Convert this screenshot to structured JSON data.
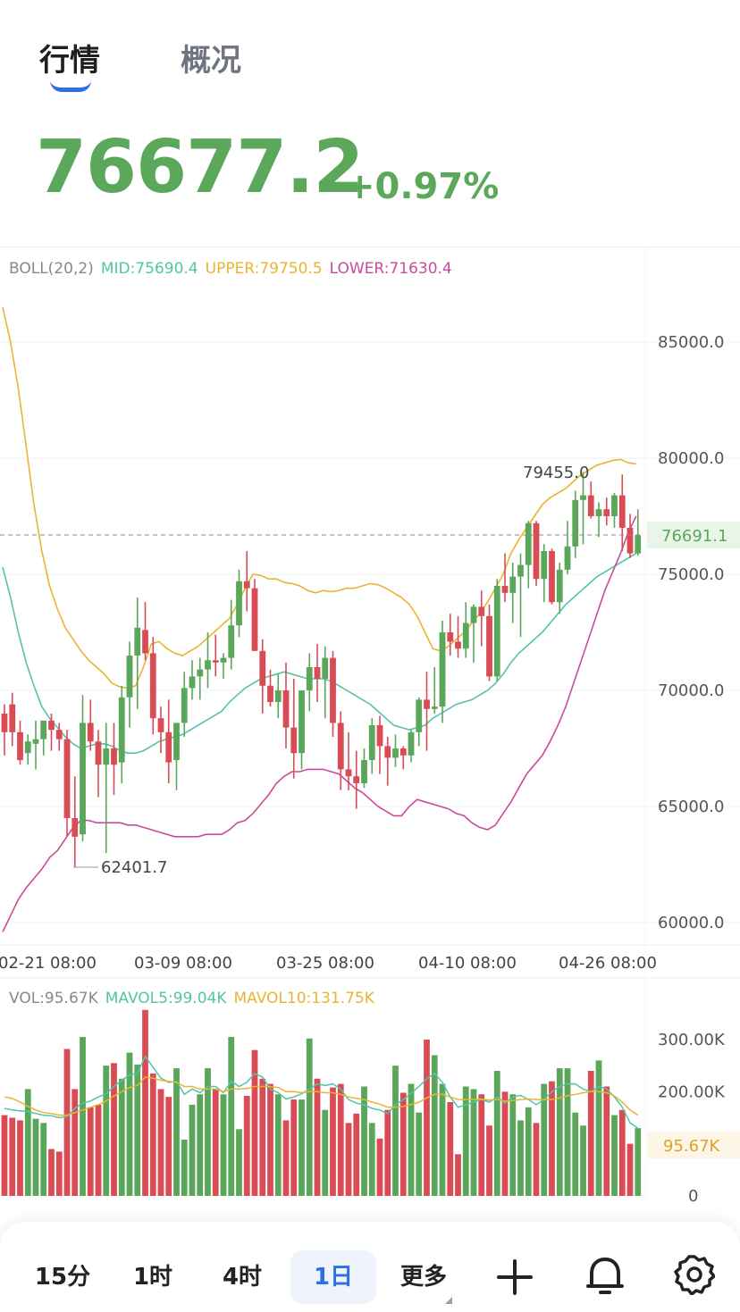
{
  "tabs": {
    "market": "行情",
    "overview": "概况"
  },
  "price": {
    "last": "76677.2",
    "change_pct": "+0.97%"
  },
  "chart_data": {
    "type": "candlestick",
    "boll": {
      "label": "BOLL(20,2)",
      "mid": "MID:75690.4",
      "upper": "UPPER:79750.5",
      "lower": "LOWER:71630.4"
    },
    "y_ticks": [
      "85000.0",
      "80000.0",
      "75000.0",
      "70000.0",
      "65000.0",
      "60000.0"
    ],
    "x_ticks": [
      "02-21 08:00",
      "03-09 08:00",
      "03-25 08:00",
      "04-10 08:00",
      "04-26 08:00"
    ],
    "y_range": [
      59000,
      88000
    ],
    "current_price": "76691.1",
    "high_label": "79455.0",
    "low_label": "62401.7",
    "candles": [
      [
        69000,
        69400,
        67200,
        68200
      ],
      [
        69400,
        69900,
        67600,
        68200
      ],
      [
        68200,
        68700,
        66800,
        67000
      ],
      [
        67300,
        68100,
        66800,
        67800
      ],
      [
        67700,
        68700,
        66600,
        67900
      ],
      [
        67900,
        68600,
        67200,
        68700
      ],
      [
        68700,
        69000,
        67400,
        68300
      ],
      [
        68300,
        68600,
        67400,
        67900
      ],
      [
        67900,
        68300,
        63700,
        64500
      ],
      [
        64500,
        66300,
        62400,
        63700
      ],
      [
        63800,
        69800,
        63500,
        68600
      ],
      [
        68600,
        69600,
        67400,
        67800
      ],
      [
        67800,
        68300,
        65400,
        66800
      ],
      [
        66800,
        68600,
        63000,
        67500
      ],
      [
        67500,
        68600,
        65500,
        66800
      ],
      [
        66900,
        70200,
        66000,
        69700
      ],
      [
        69700,
        72100,
        68400,
        71500
      ],
      [
        71500,
        74000,
        69200,
        72700
      ],
      [
        72600,
        73800,
        71300,
        71600
      ],
      [
        71600,
        72300,
        68100,
        68800
      ],
      [
        68800,
        69300,
        67300,
        68200
      ],
      [
        68200,
        69600,
        66000,
        66900
      ],
      [
        67000,
        68600,
        65700,
        68600
      ],
      [
        68600,
        70800,
        68000,
        70100
      ],
      [
        70100,
        71300,
        69600,
        70600
      ],
      [
        70600,
        71400,
        69600,
        70900
      ],
      [
        70900,
        72500,
        70100,
        71300
      ],
      [
        71300,
        72400,
        70600,
        71200
      ],
      [
        71200,
        71600,
        70500,
        71400
      ],
      [
        71400,
        73900,
        70900,
        72800
      ],
      [
        72800,
        75200,
        72300,
        74700
      ],
      [
        74700,
        76000,
        73400,
        74400
      ],
      [
        74400,
        74800,
        71700,
        71700
      ],
      [
        71700,
        72200,
        69000,
        70200
      ],
      [
        70200,
        70900,
        69300,
        69500
      ],
      [
        69500,
        70700,
        68800,
        70000
      ],
      [
        70000,
        71200,
        67500,
        68400
      ],
      [
        68400,
        70500,
        66200,
        67300
      ],
      [
        67300,
        70000,
        66600,
        70000
      ],
      [
        70000,
        71600,
        69100,
        71000
      ],
      [
        71000,
        72000,
        69500,
        70500
      ],
      [
        70500,
        71900,
        68800,
        71400
      ],
      [
        71400,
        71700,
        68000,
        68600
      ],
      [
        68600,
        69100,
        65700,
        66600
      ],
      [
        66600,
        68200,
        65700,
        66300
      ],
      [
        66300,
        67400,
        64900,
        66000
      ],
      [
        66000,
        67500,
        65800,
        67000
      ],
      [
        67000,
        68800,
        66400,
        68500
      ],
      [
        68500,
        68900,
        66400,
        67600
      ],
      [
        67600,
        68000,
        65900,
        67100
      ],
      [
        67100,
        68100,
        66700,
        67500
      ],
      [
        67500,
        67600,
        66600,
        67200
      ],
      [
        67200,
        68300,
        66900,
        68200
      ],
      [
        68200,
        69700,
        67600,
        69600
      ],
      [
        69600,
        70800,
        67400,
        69200
      ],
      [
        69200,
        71000,
        69000,
        69300
      ],
      [
        69300,
        73000,
        68600,
        72500
      ],
      [
        72500,
        73300,
        71500,
        72100
      ],
      [
        72100,
        73200,
        71400,
        71800
      ],
      [
        71800,
        73800,
        71400,
        72900
      ],
      [
        72900,
        73700,
        71200,
        73600
      ],
      [
        73600,
        74300,
        71900,
        73200
      ],
      [
        73200,
        73700,
        70400,
        70600
      ],
      [
        70600,
        74800,
        70400,
        74500
      ],
      [
        74500,
        75900,
        73800,
        74200
      ],
      [
        74200,
        75500,
        72900,
        74900
      ],
      [
        74900,
        75900,
        72300,
        75400
      ],
      [
        75400,
        77300,
        74400,
        77200
      ],
      [
        77200,
        77300,
        74500,
        74800
      ],
      [
        74800,
        76300,
        73800,
        76000
      ],
      [
        76000,
        76100,
        73700,
        73800
      ],
      [
        73800,
        75500,
        73300,
        75200
      ],
      [
        75200,
        77300,
        75000,
        76200
      ],
      [
        76200,
        78600,
        75700,
        78200
      ],
      [
        78200,
        79400,
        76300,
        78400
      ],
      [
        78400,
        79000,
        77400,
        77500
      ],
      [
        77500,
        78100,
        76600,
        77800
      ],
      [
        77800,
        78300,
        77100,
        77500
      ],
      [
        77500,
        78500,
        77000,
        78400
      ],
      [
        78400,
        79300,
        76000,
        77000
      ],
      [
        77000,
        77600,
        75700,
        75900
      ],
      [
        75900,
        77800,
        75800,
        76677
      ]
    ],
    "boll_upper_line": [
      86500,
      85000,
      83000,
      80500,
      78000,
      76000,
      74500,
      73500,
      72700,
      72200,
      71700,
      71300,
      71000,
      70700,
      70300,
      70150,
      70100,
      70200,
      71000,
      72000,
      72100,
      71800,
      71600,
      71500,
      71700,
      71900,
      72200,
      72500,
      72800,
      73100,
      73700,
      74400,
      75000,
      74950,
      74800,
      74800,
      74650,
      74600,
      74500,
      74300,
      74200,
      74300,
      74250,
      74300,
      74400,
      74400,
      74500,
      74600,
      74550,
      74400,
      74200,
      74000,
      73700,
      73200,
      72500,
      71800,
      71700,
      71900,
      72200,
      72500,
      72900,
      73300,
      73800,
      74400,
      75000,
      75900,
      76500,
      77000,
      77500,
      78000,
      78300,
      78500,
      78700,
      79000,
      79300,
      79500,
      79700,
      79800,
      79900,
      79950,
      79800,
      79750
    ],
    "boll_mid_line": [
      75300,
      74000,
      72500,
      71200,
      70200,
      69300,
      68800,
      68400,
      68000,
      67700,
      67500,
      67600,
      67700,
      67700,
      67600,
      67400,
      67300,
      67300,
      67400,
      67600,
      67800,
      67900,
      68000,
      68100,
      68300,
      68500,
      68700,
      68900,
      69100,
      69500,
      69800,
      70100,
      70300,
      70500,
      70600,
      70700,
      70800,
      70700,
      70600,
      70500,
      70500,
      70500,
      70400,
      70200,
      70000,
      69800,
      69600,
      69400,
      69100,
      68800,
      68500,
      68400,
      68300,
      68400,
      68500,
      68800,
      69000,
      69200,
      69400,
      69500,
      69600,
      69800,
      70000,
      70300,
      70700,
      71200,
      71600,
      71900,
      72200,
      72500,
      72900,
      73300,
      73700,
      74000,
      74300,
      74600,
      74900,
      75100,
      75300,
      75500,
      75700,
      75900
    ],
    "boll_lower_line": [
      59600,
      60300,
      61000,
      61500,
      61900,
      62300,
      62800,
      63100,
      63600,
      64100,
      64400,
      64400,
      64300,
      64300,
      64300,
      64300,
      64200,
      64200,
      64100,
      64000,
      63900,
      63800,
      63700,
      63700,
      63700,
      63700,
      63800,
      63800,
      63800,
      64000,
      64300,
      64400,
      64700,
      65100,
      65500,
      66000,
      66300,
      66500,
      66500,
      66600,
      66600,
      66600,
      66500,
      66400,
      66100,
      65800,
      65600,
      65300,
      65000,
      64800,
      64600,
      64600,
      65000,
      65300,
      65200,
      65100,
      65000,
      64900,
      64700,
      64600,
      64300,
      64100,
      64000,
      64200,
      64700,
      65200,
      65800,
      66400,
      66800,
      67200,
      67800,
      68500,
      69300,
      70300,
      71300,
      72300,
      73300,
      74300,
      75100,
      75900,
      76800,
      77500
    ],
    "vol": {
      "label": "VOL:95.67K",
      "mavol5": "MAVOL5:99.04K",
      "mavol10": "MAVOL10:131.75K"
    },
    "vol_ticks": [
      "300.00K",
      "200.00K",
      "0"
    ],
    "vol_current": "95.67K",
    "volumes": [
      155,
      150,
      145,
      205,
      148,
      140,
      90,
      85,
      282,
      205,
      305,
      170,
      175,
      250,
      255,
      225,
      275,
      252,
      357,
      235,
      205,
      190,
      245,
      108,
      175,
      195,
      245,
      205,
      195,
      305,
      128,
      192,
      280,
      225,
      215,
      195,
      145,
      185,
      185,
      302,
      225,
      165,
      208,
      215,
      140,
      158,
      210,
      140,
      110,
      165,
      250,
      198,
      215,
      160,
      300,
      270,
      215,
      180,
      80,
      210,
      205,
      195,
      135,
      240,
      200,
      195,
      145,
      170,
      140,
      215,
      220,
      245,
      245,
      160,
      135,
      240,
      260,
      210,
      155,
      165,
      100,
      130
    ],
    "mavol5_line": [
      168,
      165,
      163,
      162,
      158,
      155,
      154,
      150,
      152,
      168,
      178,
      182,
      190,
      196,
      210,
      222,
      232,
      235,
      268,
      247,
      226,
      218,
      220,
      195,
      205,
      198,
      210,
      210,
      198,
      220,
      210,
      218,
      235,
      228,
      205,
      198,
      186,
      190,
      196,
      205,
      215,
      212,
      215,
      205,
      185,
      178,
      175,
      168,
      165,
      158,
      175,
      185,
      197,
      210,
      225,
      235,
      218,
      190,
      170,
      175,
      180,
      185,
      180,
      190,
      178,
      190,
      193,
      185,
      175,
      185,
      200,
      210,
      215,
      215,
      205,
      200,
      210,
      205,
      190,
      170,
      140,
      130
    ],
    "mavol10_line": [
      190,
      187,
      180,
      172,
      165,
      160,
      158,
      155,
      155,
      160,
      165,
      170,
      175,
      182,
      192,
      200,
      208,
      212,
      228,
      226,
      222,
      220,
      218,
      210,
      210,
      205,
      205,
      205,
      200,
      205,
      205,
      206,
      210,
      210,
      210,
      208,
      200,
      200,
      198,
      200,
      200,
      198,
      198,
      195,
      190,
      187,
      185,
      180,
      176,
      170,
      170,
      172,
      175,
      180,
      188,
      195,
      195,
      190,
      185,
      185,
      185,
      186,
      184,
      185,
      182,
      183,
      185,
      186,
      185,
      185,
      185,
      188,
      192,
      195,
      198,
      200,
      200,
      198,
      192,
      180,
      165,
      155
    ]
  },
  "intervals": {
    "m15": "15分",
    "h1": "1时",
    "h4": "4时",
    "d1": "1日",
    "more": "更多"
  },
  "colors": {
    "up": "#5aa65a",
    "down": "#d94c55",
    "mid": "#52c4a8",
    "upper": "#e9b530",
    "lower": "#cc4a9a",
    "accent": "#2f6fe4"
  }
}
